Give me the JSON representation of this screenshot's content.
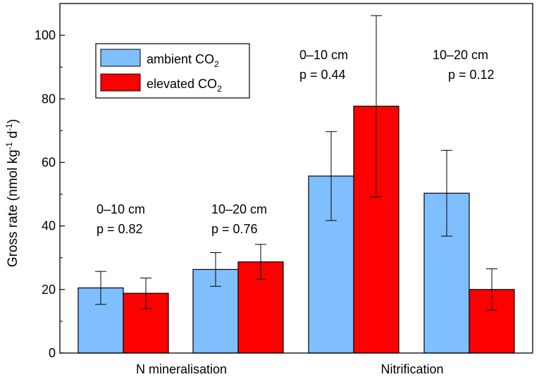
{
  "chart_data": {
    "type": "bar",
    "ylabel": "Gross rate (nmol kg-1 d-1)",
    "ylabel_parts": {
      "main": "Gross rate (nmol kg",
      "sup1": "-1",
      "mid": " d",
      "sup2": "-1",
      "end": ")"
    },
    "ylim": [
      0,
      110
    ],
    "yticks": [
      0,
      20,
      40,
      60,
      80,
      100
    ],
    "categories": [
      "N mineralisation",
      "Nitrification"
    ],
    "groups": [
      {
        "category": "N mineralisation",
        "depth": "0–10 cm",
        "p": "p = 0.82",
        "ambient": 20.5,
        "ambient_err": 5.2,
        "elevated": 18.8,
        "elevated_err": 4.8
      },
      {
        "category": "N mineralisation",
        "depth": "10–20 cm",
        "p": "p = 0.76",
        "ambient": 26.3,
        "ambient_err": 5.3,
        "elevated": 28.7,
        "elevated_err": 5.5
      },
      {
        "category": "Nitrification",
        "depth": "0–10 cm",
        "p": "p = 0.44",
        "ambient": 55.7,
        "ambient_err": 14.0,
        "elevated": 77.7,
        "elevated_err": 28.5
      },
      {
        "category": "Nitrification",
        "depth": "10–20 cm",
        "p": "p = 0.12",
        "ambient": 50.3,
        "ambient_err": 13.5,
        "elevated": 20.0,
        "elevated_err": 6.5
      }
    ],
    "series": [
      {
        "name": "ambient CO2",
        "label": "ambient CO",
        "sub": "2",
        "color": "#80bfff"
      },
      {
        "name": "elevated CO2",
        "label": "elevated CO",
        "sub": "2",
        "color": "#ff0000"
      }
    ],
    "legend_position": "top-left"
  }
}
